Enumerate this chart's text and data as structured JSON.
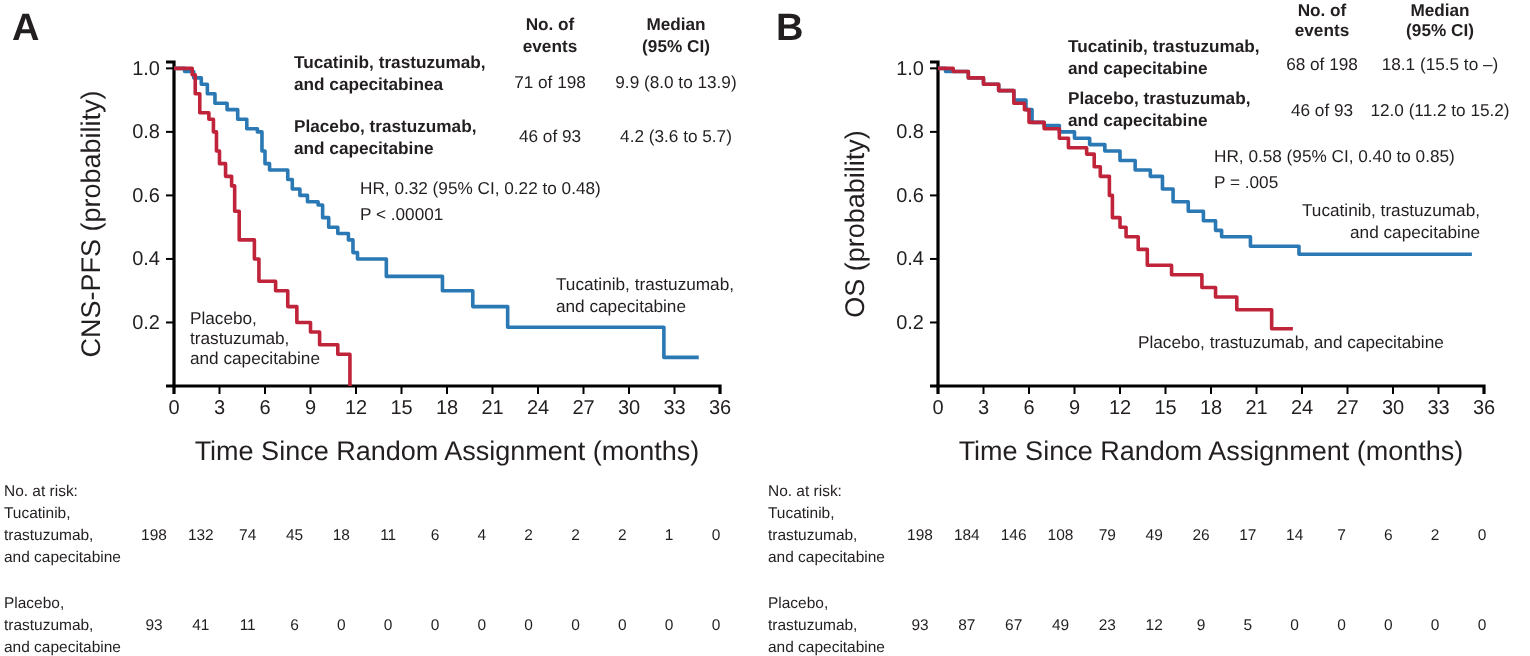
{
  "chart_data": [
    {
      "type": "step",
      "title": "A",
      "xlabel": "Time Since Random Assignment (months)",
      "ylabel": "CNS-PFS (probability)",
      "xlim": [
        0,
        36
      ],
      "xticks": [
        0,
        3,
        6,
        9,
        12,
        15,
        18,
        21,
        24,
        27,
        30,
        33,
        36
      ],
      "ylim": [
        0,
        1.02
      ],
      "yticks": [
        0.2,
        0.4,
        0.6,
        0.8,
        {
          "value": 1,
          "label": "1.0"
        }
      ],
      "grid": false,
      "series": [
        {
          "name": "Tucatinib, trastuzumab,\nand capecitabine",
          "color": "#2a78b4",
          "x": [
            0,
            0.7,
            1.3,
            1.8,
            2.2,
            2.7,
            3.5,
            4.2,
            4.8,
            5.5,
            5.8,
            6,
            6.3,
            7.5,
            7.8,
            8.3,
            8.8,
            9.5,
            9.8,
            10.2,
            10.8,
            11.5,
            11.8,
            12.1,
            14,
            17.7,
            19.7,
            22,
            32.3,
            34.6
          ],
          "values": [
            1,
            0.99,
            0.97,
            0.95,
            0.92,
            0.89,
            0.87,
            0.84,
            0.81,
            0.8,
            0.74,
            0.7,
            0.68,
            0.65,
            0.62,
            0.6,
            0.58,
            0.57,
            0.53,
            0.5,
            0.48,
            0.46,
            0.42,
            0.4,
            0.345,
            0.3,
            0.25,
            0.185,
            0.09,
            0.09
          ]
        },
        {
          "name": "Placebo,\ntrastuzumab,\nand capecitabine",
          "color": "#c0243a",
          "x": [
            0,
            1.2,
            1.4,
            1.7,
            2.3,
            2.6,
            2.8,
            3,
            3.4,
            3.8,
            4,
            4.3,
            5.3,
            5.6,
            6.7,
            7.5,
            8.1,
            9,
            9.6,
            10.8,
            11.6
          ],
          "values": [
            1,
            0.98,
            0.92,
            0.86,
            0.84,
            0.8,
            0.74,
            0.7,
            0.66,
            0.63,
            0.55,
            0.46,
            0.4,
            0.33,
            0.3,
            0.25,
            0.2,
            0.17,
            0.13,
            0.1,
            0
          ]
        }
      ],
      "annotations": [
        "No. of\nevents",
        "Median\n(95% CI)",
        "Tucatinib, trastuzumab,\nand capecitabinea",
        "71 of 198",
        "9.9 (8.0 to 13.9)",
        "Placebo, trastuzumab,\nand capecitabine",
        "46 of 93",
        "4.2 (3.6 to 5.7)",
        "HR, 0.32 (95% CI, 0.22 to 0.48)",
        "P < .00001",
        "No. at risk:",
        "Tucatinib,\ntrastuzumab,\nand capecitabine",
        "198",
        "132",
        "74",
        "45",
        "18",
        "11",
        "6",
        "4",
        "2",
        "2",
        "2",
        "1",
        "0",
        "Placebo,\ntrastuzumab,\nand capecitabine",
        "93",
        "41",
        "11",
        "6",
        "0",
        "0",
        "0",
        "0",
        "0",
        "0",
        "0",
        "0",
        "0"
      ]
    },
    {
      "type": "step",
      "title": "B",
      "xlabel": "Time Since Random Assignment (months)",
      "ylabel": "OS (probability)",
      "xlim": [
        0,
        36
      ],
      "xticks": [
        0,
        3,
        6,
        9,
        12,
        15,
        18,
        21,
        24,
        27,
        30,
        33,
        36
      ],
      "ylim": [
        0,
        1.02
      ],
      "yticks": [
        0.2,
        0.4,
        0.6,
        0.8,
        {
          "value": 1,
          "label": "1.0"
        }
      ],
      "grid": false,
      "series": [
        {
          "name": "Tucatinib, trastuzumab,\nand capecitabine",
          "color": "#2a78b4",
          "x": [
            0,
            0.5,
            2,
            3,
            4,
            5,
            5.8,
            6.2,
            7,
            8,
            9,
            10,
            11,
            12,
            13,
            14,
            14.8,
            15.5,
            16.5,
            17.5,
            18.3,
            18.7,
            20.6,
            23.8,
            35.2
          ],
          "values": [
            1,
            0.99,
            0.97,
            0.95,
            0.93,
            0.9,
            0.87,
            0.83,
            0.82,
            0.8,
            0.78,
            0.76,
            0.74,
            0.71,
            0.68,
            0.66,
            0.62,
            0.58,
            0.55,
            0.52,
            0.49,
            0.47,
            0.44,
            0.415,
            0.415
          ]
        },
        {
          "name": "Placebo, trastuzumab, and capecitabine",
          "color": "#c0243a",
          "x": [
            0,
            1,
            2,
            3,
            4,
            5,
            5.7,
            6,
            7,
            8,
            8.6,
            9.8,
            10.3,
            10.7,
            11.3,
            11.5,
            12,
            12.4,
            13.2,
            13.8,
            15.4,
            17.4,
            18.3,
            19.7,
            22,
            23.4
          ],
          "values": [
            1,
            0.99,
            0.97,
            0.95,
            0.93,
            0.89,
            0.87,
            0.83,
            0.81,
            0.78,
            0.75,
            0.73,
            0.69,
            0.66,
            0.6,
            0.53,
            0.5,
            0.47,
            0.43,
            0.38,
            0.35,
            0.31,
            0.28,
            0.24,
            0.18,
            0.18
          ]
        }
      ],
      "annotations": [
        "No. of\nevents",
        "Median\n(95% CI)",
        "Tucatinib, trastuzumab,\nand capecitabine",
        "68 of 198",
        "18.1 (15.5 to –)",
        "Placebo, trastuzumab,\nand capecitabine",
        "46 of 93",
        "12.0 (11.2 to 15.2)",
        "HR, 0.58 (95% CI, 0.40 to 0.85)",
        "P = .005",
        "No. at risk:",
        "Tucatinib,\ntrastuzumab,\nand capecitabine",
        "198",
        "184",
        "146",
        "108",
        "79",
        "49",
        "26",
        "17",
        "14",
        "7",
        "6",
        "2",
        "0",
        "Placebo,\ntrastuzumab,\nand capecitabine",
        "93",
        "87",
        "67",
        "49",
        "23",
        "12",
        "9",
        "5",
        "0",
        "0",
        "0",
        "0",
        "0"
      ]
    }
  ]
}
